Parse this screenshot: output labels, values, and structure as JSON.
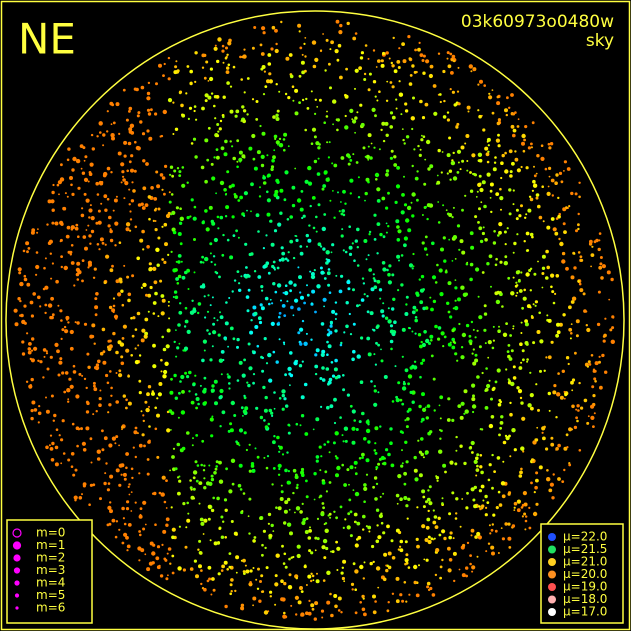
{
  "label": "NE",
  "field_id": "03k60973o0480w",
  "band": "sky",
  "magnitude_legend": {
    "entries": [
      "m=0",
      "m=1",
      "m=2",
      "m=3",
      "m=4",
      "m=5",
      "m=6"
    ],
    "color": "#ff00ff"
  },
  "surface_brightness_legend": {
    "entries": [
      {
        "label": "μ=22.0",
        "color": "#2050ff"
      },
      {
        "label": "μ=21.5",
        "color": "#20e060"
      },
      {
        "label": "μ=21.0",
        "color": "#ffd020"
      },
      {
        "label": "μ=20.0",
        "color": "#ff9020"
      },
      {
        "label": "μ=19.0",
        "color": "#ff5050"
      },
      {
        "label": "μ=18.0",
        "color": "#ffb0b0"
      },
      {
        "label": "μ=17.0",
        "color": "#ffffff"
      }
    ]
  }
}
